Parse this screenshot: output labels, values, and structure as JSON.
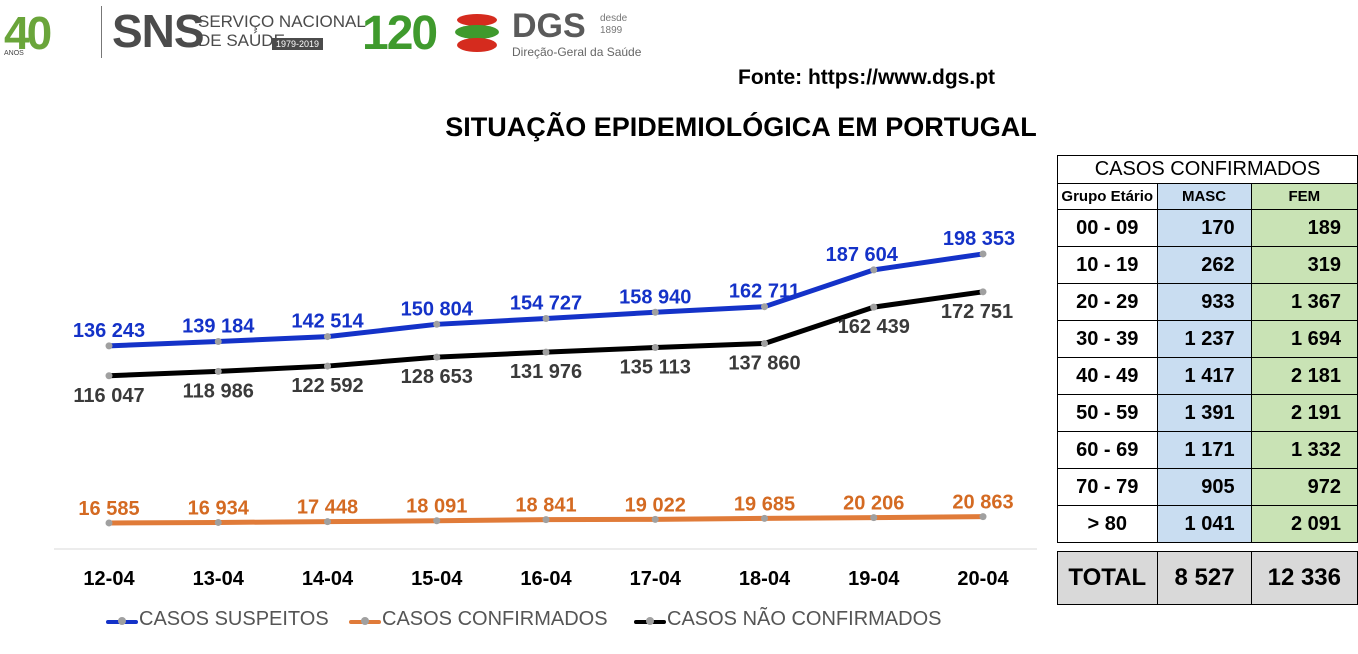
{
  "header": {
    "logo40_number": "40",
    "logo40_anos": "ANOS",
    "sns": "SNS",
    "sns_line1": "SERVIÇO NACIONAL",
    "sns_line2": "DE SAÚDE",
    "sns_years": "1979-2019",
    "logo120": "120",
    "dgs": "DGS",
    "dgs_desde": "desde",
    "dgs_year": "1899",
    "dgs_sub": "Direção-Geral da Saúde",
    "fonte": "Fonte: https://www.dgs.pt"
  },
  "title": "SITUAÇÃO EPIDEMIOLÓGICA EM PORTUGAL",
  "colors": {
    "suspeitos": "#1432c8",
    "confirmados": "#e07b39",
    "nao_confirmados": "#000000",
    "blue_cell": "#c9ddf1",
    "green_cell": "#c9e3b5"
  },
  "chart_data": {
    "type": "line",
    "categories": [
      "12-04",
      "13-04",
      "14-04",
      "15-04",
      "16-04",
      "17-04",
      "18-04",
      "19-04",
      "20-04"
    ],
    "series": [
      {
        "name": "CASOS SUSPEITOS",
        "values": [
          136243,
          139184,
          142514,
          150804,
          154727,
          158940,
          162711,
          187604,
          198353
        ],
        "labels": [
          "136 243",
          "139 184",
          "142 514",
          "150 804",
          "154 727",
          "158 940",
          "162 711",
          "187 604",
          "198 353"
        ]
      },
      {
        "name": "CASOS CONFIRMADOS",
        "values": [
          16585,
          16934,
          17448,
          18091,
          18841,
          19022,
          19685,
          20206,
          20863
        ],
        "labels": [
          "16 585",
          "16 934",
          "17 448",
          "18 091",
          "18 841",
          "19 022",
          "19 685",
          "20 206",
          "20 863"
        ]
      },
      {
        "name": "CASOS NÃO CONFIRMADOS",
        "values": [
          116047,
          118986,
          122592,
          128653,
          131976,
          135113,
          137860,
          162439,
          172751
        ],
        "labels": [
          "116 047",
          "118 986",
          "122 592",
          "128 653",
          "131 976",
          "135 113",
          "137 860",
          "162 439",
          "172 751"
        ]
      }
    ],
    "legend": "bottom",
    "grid": false
  },
  "table": {
    "title": "CASOS CONFIRMADOS",
    "headers": [
      "Grupo Etário",
      "MASC",
      "FEM"
    ],
    "rows": [
      [
        "00 - 09",
        "170",
        "189"
      ],
      [
        "10 - 19",
        "262",
        "319"
      ],
      [
        "20 - 29",
        "933",
        "1 367"
      ],
      [
        "30 - 39",
        "1 237",
        "1 694"
      ],
      [
        "40 - 49",
        "1 417",
        "2 181"
      ],
      [
        "50 - 59",
        "1 391",
        "2 191"
      ],
      [
        "60 - 69",
        "1 171",
        "1 332"
      ],
      [
        "70 - 79",
        "905",
        "972"
      ],
      [
        "> 80",
        "1 041",
        "2 091"
      ]
    ],
    "total": [
      "TOTAL",
      "8 527",
      "12 336"
    ]
  }
}
